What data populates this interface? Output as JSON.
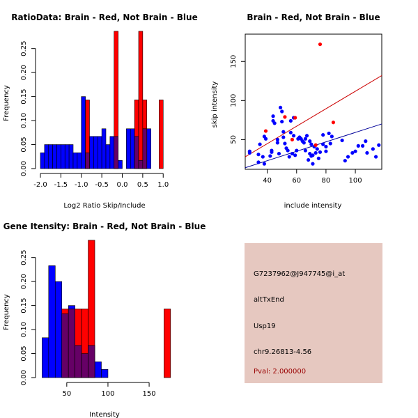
{
  "colors": {
    "red": "#ff0000",
    "blue": "#0000ff",
    "overlap": "#660066",
    "regBrain": "#cc0000",
    "regNotBrain": "#000099",
    "infoBg": "#e6c8c0",
    "pval": "#990000"
  },
  "chart_data": [
    {
      "id": "ratio",
      "type": "bar",
      "title": "RatioData: Brain - Red, Not Brain - Blue",
      "xlabel": "Log2 Ratio Skip/Include",
      "ylabel": "Frequency",
      "xlim": [
        -2.0,
        1.2
      ],
      "ylim": [
        0,
        0.28
      ],
      "xticks": [
        -2.0,
        -1.5,
        -1.0,
        -0.5,
        0.0,
        0.5,
        1.0
      ],
      "xtick_labels": [
        "-2.0",
        "-1.5",
        "-1.0",
        "-0.5",
        "0.0",
        "0.5",
        "1.0"
      ],
      "yticks": [
        0,
        0.05,
        0.1,
        0.15,
        0.2,
        0.25
      ],
      "ytick_labels": [
        "0.00",
        "0.05",
        "0.10",
        "0.15",
        "0.20",
        "0.25"
      ],
      "series": [
        {
          "name": "Not Brain",
          "color": "blue",
          "bins": [
            {
              "x0": -2.0,
              "x1": -1.9,
              "v": 0.033
            },
            {
              "x0": -1.9,
              "x1": -1.8,
              "v": 0.05
            },
            {
              "x0": -1.8,
              "x1": -1.7,
              "v": 0.05
            },
            {
              "x0": -1.7,
              "x1": -1.6,
              "v": 0.05
            },
            {
              "x0": -1.6,
              "x1": -1.5,
              "v": 0.05
            },
            {
              "x0": -1.5,
              "x1": -1.4,
              "v": 0.05
            },
            {
              "x0": -1.4,
              "x1": -1.3,
              "v": 0.05
            },
            {
              "x0": -1.3,
              "x1": -1.2,
              "v": 0.05
            },
            {
              "x0": -1.2,
              "x1": -1.1,
              "v": 0.033
            },
            {
              "x0": -1.1,
              "x1": -1.0,
              "v": 0.033
            },
            {
              "x0": -1.0,
              "x1": -0.9,
              "v": 0.15
            },
            {
              "x0": -0.9,
              "x1": -0.8,
              "v": 0.033
            },
            {
              "x0": -0.8,
              "x1": -0.7,
              "v": 0.067
            },
            {
              "x0": -0.7,
              "x1": -0.6,
              "v": 0.067
            },
            {
              "x0": -0.6,
              "x1": -0.5,
              "v": 0.067
            },
            {
              "x0": -0.5,
              "x1": -0.4,
              "v": 0.083
            },
            {
              "x0": -0.4,
              "x1": -0.3,
              "v": 0.05
            },
            {
              "x0": -0.3,
              "x1": -0.2,
              "v": 0.067
            },
            {
              "x0": -0.2,
              "x1": -0.1,
              "v": 0.067
            },
            {
              "x0": -0.1,
              "x1": 0.0,
              "v": 0.017
            },
            {
              "x0": 0.1,
              "x1": 0.2,
              "v": 0.083
            },
            {
              "x0": 0.2,
              "x1": 0.3,
              "v": 0.083
            },
            {
              "x0": 0.3,
              "x1": 0.4,
              "v": 0.067
            },
            {
              "x0": 0.4,
              "x1": 0.5,
              "v": 0.017
            },
            {
              "x0": 0.5,
              "x1": 0.6,
              "v": 0.083
            },
            {
              "x0": 0.6,
              "x1": 0.7,
              "v": 0.083
            }
          ]
        },
        {
          "name": "Brain",
          "color": "red",
          "bins": [
            {
              "x0": -0.9,
              "x1": -0.8,
              "v": 0.143
            },
            {
              "x0": -0.2,
              "x1": -0.1,
              "v": 0.286
            },
            {
              "x0": 0.3,
              "x1": 0.4,
              "v": 0.143
            },
            {
              "x0": 0.4,
              "x1": 0.5,
              "v": 0.286
            },
            {
              "x0": 0.5,
              "x1": 0.6,
              "v": 0.143
            },
            {
              "x0": 0.9,
              "x1": 1.0,
              "v": 0.143
            }
          ]
        }
      ]
    },
    {
      "id": "scatter",
      "type": "scatter",
      "title": "Brain - Red, Not Brain - Blue",
      "xlabel": "include intensity",
      "ylabel": "skip intensity",
      "xlim": [
        25,
        118
      ],
      "ylim": [
        12,
        185
      ],
      "xticks": [
        40,
        60,
        80,
        100
      ],
      "xtick_labels": [
        "40",
        "60",
        "80",
        "100"
      ],
      "yticks": [
        50,
        100,
        150
      ],
      "ytick_labels": [
        "50",
        "100",
        "150"
      ],
      "series": [
        {
          "name": "Not Brain",
          "color": "blue",
          "points": [
            [
              28,
              35
            ],
            [
              28,
              33
            ],
            [
              34,
              21
            ],
            [
              34,
              31
            ],
            [
              35,
              44
            ],
            [
              37,
              28
            ],
            [
              38,
              19
            ],
            [
              38,
              54
            ],
            [
              39,
              51
            ],
            [
              42,
              29
            ],
            [
              43,
              36
            ],
            [
              43,
              34
            ],
            [
              44,
              80
            ],
            [
              44,
              74
            ],
            [
              45,
              71
            ],
            [
              47,
              50
            ],
            [
              47,
              46
            ],
            [
              48,
              32
            ],
            [
              49,
              91
            ],
            [
              50,
              73
            ],
            [
              50,
              86
            ],
            [
              51,
              60
            ],
            [
              51,
              53
            ],
            [
              52,
              45
            ],
            [
              53,
              39
            ],
            [
              54,
              36
            ],
            [
              55,
              28
            ],
            [
              56,
              59
            ],
            [
              56,
              74
            ],
            [
              57,
              32
            ],
            [
              58,
              55
            ],
            [
              58,
              78
            ],
            [
              59,
              30
            ],
            [
              60,
              36
            ],
            [
              61,
              51
            ],
            [
              62,
              53
            ],
            [
              63,
              51
            ],
            [
              64,
              48
            ],
            [
              65,
              46
            ],
            [
              66,
              36
            ],
            [
              66,
              51
            ],
            [
              67,
              55
            ],
            [
              68,
              24
            ],
            [
              69,
              32
            ],
            [
              69,
              48
            ],
            [
              70,
              29
            ],
            [
              70,
              44
            ],
            [
              71,
              19
            ],
            [
              71,
              30
            ],
            [
              72,
              41
            ],
            [
              73,
              33
            ],
            [
              74,
              38
            ],
            [
              75,
              26
            ],
            [
              76,
              34
            ],
            [
              78,
              44
            ],
            [
              78,
              56
            ],
            [
              80,
              35
            ],
            [
              80,
              41
            ],
            [
              82,
              58
            ],
            [
              83,
              45
            ],
            [
              84,
              54
            ],
            [
              91,
              49
            ],
            [
              93,
              23
            ],
            [
              95,
              28
            ],
            [
              98,
              33
            ],
            [
              100,
              35
            ],
            [
              102,
              42
            ],
            [
              105,
              42
            ],
            [
              107,
              48
            ],
            [
              108,
              33
            ],
            [
              112,
              38
            ],
            [
              114,
              28
            ],
            [
              116,
              43
            ]
          ]
        },
        {
          "name": "Brain",
          "color": "red",
          "points": [
            [
              39,
              61
            ],
            [
              52,
              79
            ],
            [
              57,
              50
            ],
            [
              59,
              78
            ],
            [
              73,
              43
            ],
            [
              76,
              172
            ],
            [
              85,
              72
            ]
          ]
        }
      ],
      "regression_lines": [
        {
          "name": "Brain",
          "color": "regBrain",
          "from": [
            25,
            28
          ],
          "to": [
            118,
            132
          ]
        },
        {
          "name": "Not Brain",
          "color": "regNotBrain",
          "from": [
            25,
            14
          ],
          "to": [
            118,
            70
          ]
        }
      ]
    },
    {
      "id": "gene",
      "type": "bar",
      "title": "Gene Itensity: Brain - Red, Not Brain - Blue",
      "xlabel": "Intensity",
      "ylabel": "Frequency",
      "xlim": [
        18,
        177
      ],
      "ylim": [
        0,
        0.28
      ],
      "xticks": [
        50,
        100,
        150
      ],
      "xtick_labels": [
        "50",
        "100",
        "150"
      ],
      "yticks": [
        0,
        0.05,
        0.1,
        0.15,
        0.2,
        0.25
      ],
      "ytick_labels": [
        "0.00",
        "0.05",
        "0.10",
        "0.15",
        "0.20",
        "0.25"
      ],
      "series": [
        {
          "name": "Not Brain",
          "color": "blue",
          "bins": [
            {
              "x0": 20,
              "x1": 28,
              "v": 0.083
            },
            {
              "x0": 28,
              "x1": 36,
              "v": 0.233
            },
            {
              "x0": 36,
              "x1": 44,
              "v": 0.2
            },
            {
              "x0": 44,
              "x1": 52,
              "v": 0.133
            },
            {
              "x0": 52,
              "x1": 60,
              "v": 0.15
            },
            {
              "x0": 60,
              "x1": 68,
              "v": 0.067
            },
            {
              "x0": 68,
              "x1": 76,
              "v": 0.05
            },
            {
              "x0": 76,
              "x1": 84,
              "v": 0.067
            },
            {
              "x0": 84,
              "x1": 92,
              "v": 0.033
            },
            {
              "x0": 92,
              "x1": 100,
              "v": 0.017
            }
          ]
        },
        {
          "name": "Brain",
          "color": "red",
          "bins": [
            {
              "x0": 44,
              "x1": 52,
              "v": 0.143
            },
            {
              "x0": 52,
              "x1": 60,
              "v": 0.143
            },
            {
              "x0": 60,
              "x1": 68,
              "v": 0.143
            },
            {
              "x0": 68,
              "x1": 76,
              "v": 0.143
            },
            {
              "x0": 76,
              "x1": 84,
              "v": 0.286
            },
            {
              "x0": 168,
              "x1": 176,
              "v": 0.143
            }
          ]
        }
      ]
    }
  ],
  "info": {
    "probe": "G7237962@J947745@i_at",
    "event": "altTxEnd",
    "gene": "Usp19",
    "location": "chr9.26813-4.56",
    "pval": "Pval: 2.000000"
  }
}
